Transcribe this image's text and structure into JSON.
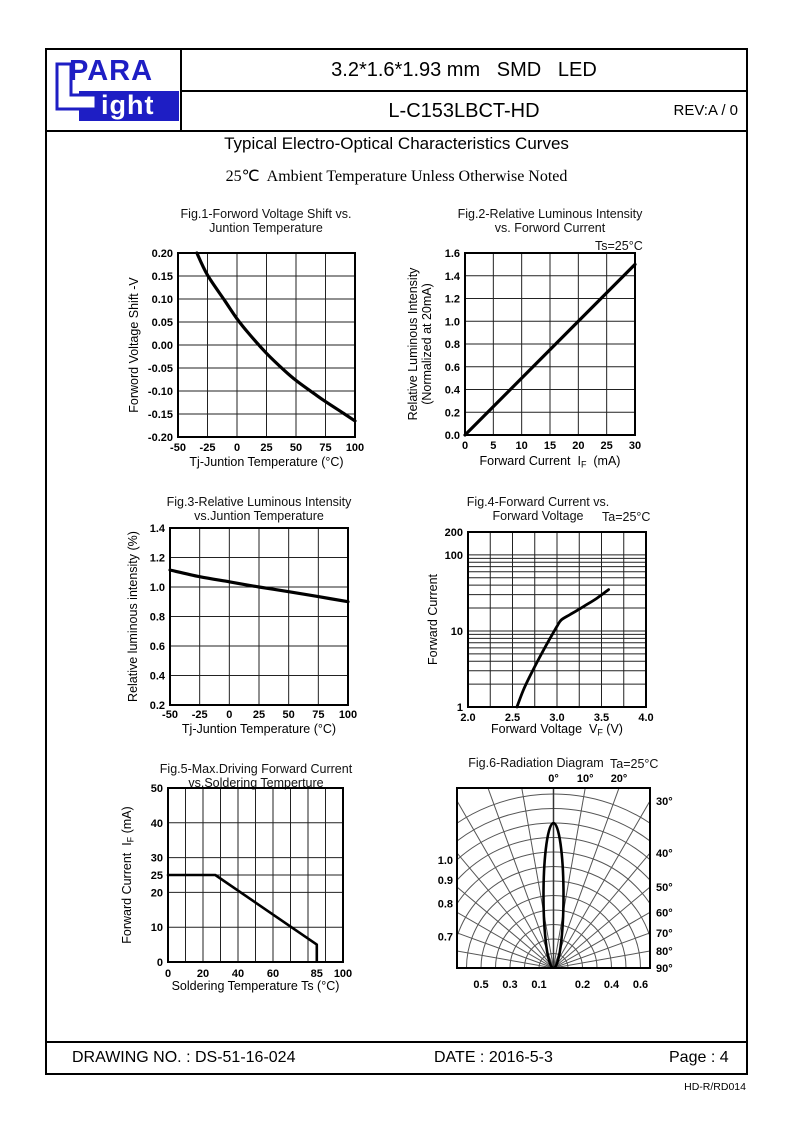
{
  "page": {
    "header": {
      "logo": {
        "para": "PARA",
        "light": "ight"
      },
      "product_size": "3.2*1.6*1.93 mm   SMD   LED",
      "part_number": "L-C153LBCT-HD",
      "revision": "REV:A / 0"
    },
    "section_title": "Typical Electro-Optical Characteristics Curves",
    "condition_note": "25℃  Ambient Temperature Unless Otherwise Noted",
    "footer": {
      "drawing_no": "DRAWING NO. : DS-51-16-024",
      "date": "DATE : 2016-5-3",
      "page": "Page : 4",
      "form_no": "HD-R/RD014"
    }
  },
  "chart_data": [
    {
      "id": "fig1",
      "type": "line",
      "title": [
        "Fig.1-Forword Voltage Shift vs.",
        "Juntion Temperature"
      ],
      "xlabel": "Tj-Juntion Temperature (°C)",
      "ylabel": "Forword Voltage Shift -V",
      "xlim": [
        -50,
        100
      ],
      "ylim": [
        -0.2,
        0.2
      ],
      "xticks": {
        "values": [
          -50,
          -25,
          0,
          25,
          50,
          75,
          100
        ],
        "labels": [
          "-50",
          "-25",
          "0",
          "25",
          "50",
          "75",
          "100"
        ]
      },
      "yticks": {
        "values": [
          0.2,
          0.15,
          0.1,
          0.05,
          0.0,
          -0.05,
          -0.1,
          -0.15,
          -0.2
        ],
        "labels": [
          "0.20",
          "0.15",
          "0.10",
          "0.05",
          "0.00",
          "-0.05",
          "-0.10",
          "-0.15",
          "-0.20"
        ]
      },
      "grid": true,
      "smooth": true,
      "points": [
        [
          -34,
          0.2
        ],
        [
          -25,
          0.152
        ],
        [
          -10,
          0.095
        ],
        [
          0,
          0.057
        ],
        [
          10,
          0.025
        ],
        [
          25,
          -0.018
        ],
        [
          40,
          -0.055
        ],
        [
          50,
          -0.077
        ],
        [
          65,
          -0.105
        ],
        [
          75,
          -0.123
        ],
        [
          90,
          -0.148
        ],
        [
          100,
          -0.165
        ]
      ]
    },
    {
      "id": "fig2",
      "type": "line",
      "title": [
        "Fig.2-Relative Luminous Intensity",
        "vs. Forword Current"
      ],
      "annotation": "Ts=25°C",
      "xlabel": {
        "pre": "Forward Current  I",
        "sub": "F",
        "post": "  (mA)"
      },
      "ylabel": [
        "Relative Luminous Intensity",
        "(Normalized at 20mA)"
      ],
      "xlim": [
        0,
        30
      ],
      "ylim": [
        0.0,
        1.6
      ],
      "xticks": {
        "values": [
          0,
          5,
          10,
          15,
          20,
          25,
          30
        ],
        "labels": [
          "0",
          "5",
          "10",
          "15",
          "20",
          "25",
          "30"
        ]
      },
      "yticks": {
        "values": [
          1.6,
          1.4,
          1.2,
          1.0,
          0.8,
          0.6,
          0.4,
          0.2,
          0.0
        ],
        "labels": [
          "1.6",
          "1.4",
          "1.2",
          "1.0",
          "0.8",
          "0.6",
          "0.4",
          "0.2",
          "0.0"
        ]
      },
      "grid": true,
      "smooth": false,
      "points": [
        [
          0,
          0.0
        ],
        [
          30,
          1.5
        ]
      ]
    },
    {
      "id": "fig3",
      "type": "line",
      "title": [
        "Fig.3-Relative Luminous Intensity",
        "vs.Juntion Temperature"
      ],
      "xlabel": "Tj-Juntion Temperature (°C)",
      "ylabel": "Relative luminous intensity (%)",
      "xlim": [
        -50,
        100
      ],
      "ylim": [
        0.2,
        1.4
      ],
      "xticks": {
        "values": [
          -50,
          -25,
          0,
          25,
          50,
          75,
          100
        ],
        "labels": [
          "-50",
          "-25",
          "0",
          "25",
          "50",
          "75",
          "100"
        ]
      },
      "yticks": {
        "values": [
          1.4,
          1.2,
          1.0,
          0.8,
          0.6,
          0.4,
          0.2
        ],
        "labels": [
          "1.4",
          "1.2",
          "1.0",
          "0.8",
          "0.6",
          "0.4",
          "0.2"
        ]
      },
      "grid": true,
      "smooth": true,
      "points": [
        [
          -50,
          1.115
        ],
        [
          -25,
          1.07
        ],
        [
          0,
          1.035
        ],
        [
          25,
          1.0
        ],
        [
          50,
          0.968
        ],
        [
          75,
          0.935
        ],
        [
          100,
          0.9
        ]
      ]
    },
    {
      "id": "fig4",
      "type": "line",
      "yscale": "log",
      "title": [
        "Fig.4-Forward Current vs.",
        "Forward Voltage"
      ],
      "annotation": "Ta=25°C",
      "xlabel": {
        "pre": "Forward Voltage  V",
        "sub": "F",
        "post": " (V)"
      },
      "ylabel": "Forward Current",
      "xlim": [
        2.0,
        4.0
      ],
      "ylim": [
        1,
        200
      ],
      "xgrid": [
        2.0,
        2.25,
        2.5,
        2.75,
        3.0,
        3.25,
        3.5,
        3.75,
        4.0
      ],
      "ygrid": [
        1,
        2,
        3,
        4,
        5,
        6,
        7,
        8,
        9,
        10,
        20,
        30,
        40,
        50,
        60,
        70,
        80,
        90,
        100,
        200
      ],
      "xticks": {
        "values": [
          2.0,
          2.5,
          3.0,
          3.5,
          4.0
        ],
        "labels": [
          "2.0",
          "2.5",
          "3.0",
          "3.5",
          "4.0"
        ]
      },
      "yticks": {
        "values": [
          200,
          100,
          10,
          1
        ],
        "labels": [
          "200",
          "100",
          "10",
          "1"
        ]
      },
      "grid": true,
      "smooth": true,
      "points": [
        [
          2.55,
          1
        ],
        [
          2.62,
          1.65
        ],
        [
          2.7,
          2.6
        ],
        [
          2.8,
          4.4
        ],
        [
          2.9,
          7.2
        ],
        [
          3.0,
          11.5
        ],
        [
          3.05,
          14
        ],
        [
          3.15,
          16.5
        ],
        [
          3.3,
          21
        ],
        [
          3.45,
          27
        ],
        [
          3.58,
          35
        ]
      ]
    },
    {
      "id": "fig5",
      "type": "line",
      "title": [
        "Fig.5-Max.Driving Forward Current",
        "vs.Soldering Temperture"
      ],
      "xlabel": "Soldering Temperature Ts (°C)",
      "ylabel": {
        "pre": "Forward Current  I",
        "sub": "F",
        "post": " (mA)"
      },
      "xlim": [
        0,
        100
      ],
      "ylim": [
        0,
        50
      ],
      "xgrid": [
        0,
        10,
        20,
        30,
        40,
        50,
        60,
        70,
        80,
        90,
        100
      ],
      "ygrid": [
        0,
        10,
        20,
        25,
        30,
        40,
        50
      ],
      "xticks": {
        "values": [
          0,
          20,
          40,
          60,
          85,
          100
        ],
        "labels": [
          "0",
          "20",
          "40",
          "60",
          "85",
          "100"
        ]
      },
      "yticks": {
        "values": [
          0,
          10,
          20,
          25,
          30,
          40,
          50
        ],
        "labels": [
          "0",
          "10",
          "20",
          "25",
          "30",
          "40",
          "50"
        ]
      },
      "grid": true,
      "smooth": false,
      "points": [
        [
          0,
          25
        ],
        [
          27,
          25
        ],
        [
          85,
          5
        ],
        [
          85,
          0.2
        ]
      ]
    },
    {
      "id": "fig6",
      "type": "polar",
      "title": [
        "Fig.6-Radiation Diagram"
      ],
      "annotation": "Ta=25°C",
      "angle_labels_top": {
        "values": [
          0,
          10,
          20
        ],
        "labels": [
          "0°",
          "10°",
          "20°"
        ]
      },
      "angle_labels_right": {
        "values": [
          30,
          40,
          50,
          60,
          70,
          80,
          90
        ],
        "labels": [
          "30°",
          "40°",
          "50°",
          "60°",
          "70°",
          "80°",
          "90°"
        ]
      },
      "radius_labels_left": {
        "values": [
          1.0,
          0.9,
          0.8,
          0.7
        ],
        "labels": [
          "1.0",
          "0.9",
          "0.8",
          "0.7"
        ]
      },
      "radius_labels_bottom": {
        "values": [
          -0.5,
          -0.3,
          -0.1,
          0.2,
          0.4,
          0.6
        ],
        "labels": [
          "0.5",
          "0.3",
          "0.1",
          "0.2",
          "0.4",
          "0.6"
        ]
      },
      "radius_arc_values": [
        0.1,
        0.2,
        0.3,
        0.4,
        0.5,
        0.6,
        0.7,
        0.8,
        0.9,
        1.0,
        1.1,
        1.2
      ],
      "radial_line_step_deg": 10,
      "beam": {
        "peak_value": 1.0,
        "peak_angle_deg": 0,
        "half_width_ratio": 0.069
      }
    }
  ]
}
